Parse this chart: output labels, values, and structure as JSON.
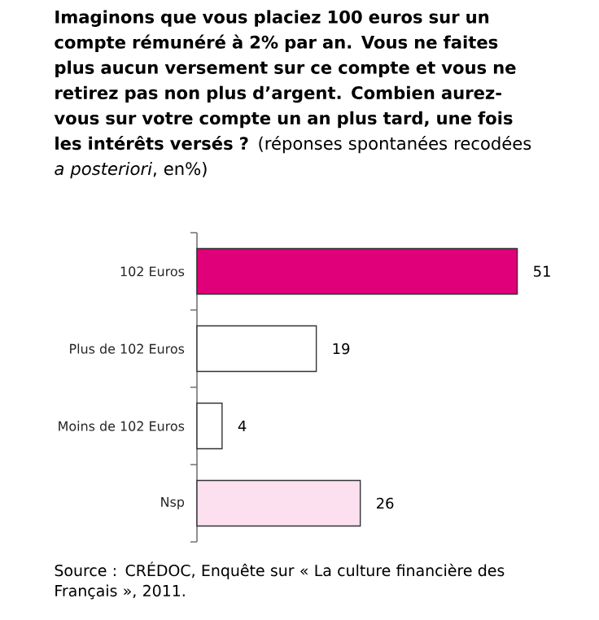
{
  "chart_data": {
    "type": "bar",
    "orientation": "horizontal",
    "title": "**Imaginons que vous placiez 100 euros sur un compte rémunéré à 2% par an. Vous ne faites plus aucun versement sur ce compte et vous ne retirez pas non plus d’argent. Combien aurez-vous sur votre compte un an plus tard, une fois les intérêts versés ?** (réponses spontanées recodées *a posteriori*, en%)",
    "categories": [
      "102 Euros",
      "Plus de 102 Euros",
      "Moins de 102 Euros",
      "Nsp"
    ],
    "values": [
      51,
      19,
      4,
      26
    ],
    "colors": [
      "#e0007a",
      "#ffffff",
      "#ffffff",
      "#fde0ef"
    ],
    "data_labels": true,
    "annotations": [
      "Source : CRÉDOC, Enquête sur « La culture financière des Français », 2011."
    ]
  }
}
